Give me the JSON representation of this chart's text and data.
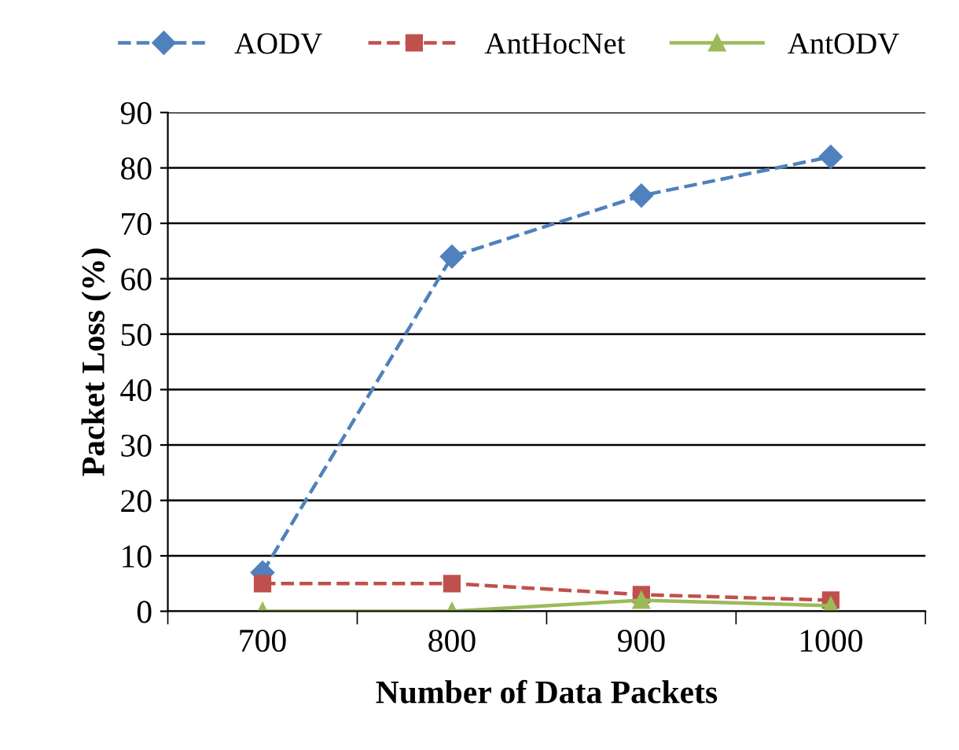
{
  "chart_data": {
    "type": "line",
    "xlabel": "Number of Data Packets",
    "ylabel": "Packet Loss (%)",
    "categories": [
      "700",
      "800",
      "900",
      "1000"
    ],
    "series": [
      {
        "name": "AODV",
        "color": "#4f81bd",
        "values": [
          7,
          64,
          75,
          82
        ],
        "marker": "diamond",
        "line_style": "dashed"
      },
      {
        "name": "AntHocNet",
        "color": "#c0504d",
        "values": [
          5,
          5,
          3,
          2
        ],
        "marker": "square",
        "line_style": "dashed"
      },
      {
        "name": "AntODV",
        "color": "#9bbb59",
        "values": [
          0,
          0,
          2,
          1
        ],
        "marker": "triangle",
        "line_style": "solid"
      }
    ],
    "ylim": [
      0,
      90
    ],
    "yticks": [
      0,
      10,
      20,
      30,
      40,
      50,
      60,
      70,
      80,
      90
    ],
    "grid": "y",
    "legend": "top"
  }
}
